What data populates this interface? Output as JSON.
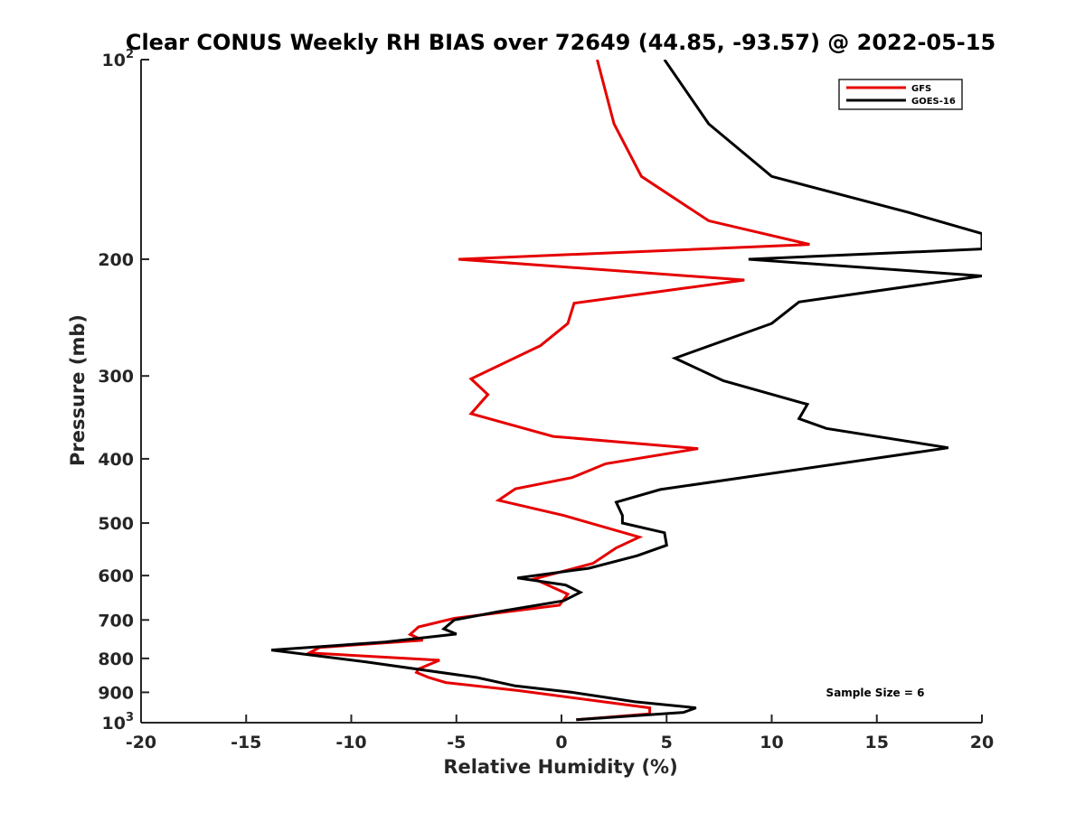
{
  "chart_data": {
    "type": "line",
    "title": "Clear CONUS Weekly RH BIAS over 72649 (44.85, -93.57) @ 2022-05-15",
    "xlabel": "Relative Humidity (%)",
    "ylabel": "Pressure (mb)",
    "xlim": [
      -20,
      20
    ],
    "ylim": [
      100,
      1000
    ],
    "y_scale": "log",
    "y_reversed": true,
    "x_ticks": [
      -20,
      -15,
      -10,
      -5,
      0,
      5,
      10,
      15,
      20
    ],
    "x_tick_labels": [
      "-20",
      "-15",
      "-10",
      "-5",
      "0",
      "5",
      "10",
      "15",
      "20"
    ],
    "y_ticks": [
      {
        "value": 100,
        "base": "10",
        "exp": "2"
      },
      {
        "value": 200,
        "base": "200",
        "exp": ""
      },
      {
        "value": 300,
        "base": "300",
        "exp": ""
      },
      {
        "value": 400,
        "base": "400",
        "exp": ""
      },
      {
        "value": 500,
        "base": "500",
        "exp": ""
      },
      {
        "value": 600,
        "base": "600",
        "exp": ""
      },
      {
        "value": 700,
        "base": "700",
        "exp": ""
      },
      {
        "value": 800,
        "base": "800",
        "exp": ""
      },
      {
        "value": 900,
        "base": "900",
        "exp": ""
      },
      {
        "value": 1000,
        "base": "10",
        "exp": "3"
      }
    ],
    "grid": false,
    "legend_position": "top-right",
    "annotation": "Sample Size = 6",
    "series": [
      {
        "name": "GFS",
        "color": "#e60000",
        "points": [
          [
            1.7,
            100
          ],
          [
            2.5,
            125
          ],
          [
            3.8,
            150
          ],
          [
            7.0,
            175
          ],
          [
            11.8,
            190
          ],
          [
            -4.9,
            200
          ],
          [
            8.7,
            215
          ],
          [
            0.6,
            233
          ],
          [
            0.3,
            250
          ],
          [
            -1.0,
            270
          ],
          [
            -4.3,
            303
          ],
          [
            -3.5,
            320
          ],
          [
            -4.3,
            342
          ],
          [
            -0.4,
            370
          ],
          [
            6.5,
            386
          ],
          [
            2.1,
            407
          ],
          [
            0.5,
            427
          ],
          [
            -2.2,
            444
          ],
          [
            -3.0,
            462
          ],
          [
            0.1,
            487
          ],
          [
            3.7,
            525
          ],
          [
            2.6,
            545
          ],
          [
            1.5,
            575
          ],
          [
            -1.3,
            607
          ],
          [
            0.3,
            640
          ],
          [
            -0.1,
            665
          ],
          [
            -5.1,
            696
          ],
          [
            -6.8,
            717
          ],
          [
            -7.2,
            736
          ],
          [
            -6.6,
            751
          ],
          [
            -11.5,
            770
          ],
          [
            -12.0,
            785
          ],
          [
            -5.8,
            805
          ],
          [
            -6.8,
            830
          ],
          [
            -6.9,
            840
          ],
          [
            -6.3,
            855
          ],
          [
            -5.5,
            870
          ],
          [
            -2.0,
            895
          ],
          [
            4.2,
            950
          ],
          [
            4.2,
            970
          ],
          [
            0.7,
            990
          ]
        ]
      },
      {
        "name": "GOES-16",
        "color": "#000000",
        "points": [
          [
            4.9,
            100
          ],
          [
            7.0,
            125
          ],
          [
            10.0,
            150
          ],
          [
            16.5,
            170
          ],
          [
            20.0,
            183
          ],
          [
            20.0,
            193
          ],
          [
            8.9,
            200
          ],
          [
            20.0,
            212
          ],
          [
            11.3,
            232
          ],
          [
            10.0,
            250
          ],
          [
            5.4,
            282
          ],
          [
            7.7,
            305
          ],
          [
            11.7,
            331
          ],
          [
            11.3,
            348
          ],
          [
            12.6,
            360
          ],
          [
            18.4,
            385
          ],
          [
            4.7,
            445
          ],
          [
            2.6,
            465
          ],
          [
            2.9,
            487
          ],
          [
            2.9,
            500
          ],
          [
            4.9,
            517
          ],
          [
            5.0,
            540
          ],
          [
            3.6,
            560
          ],
          [
            1.3,
            585
          ],
          [
            -2.1,
            605
          ],
          [
            0.2,
            620
          ],
          [
            0.9,
            636
          ],
          [
            0.1,
            655
          ],
          [
            -3.0,
            680
          ],
          [
            -5.1,
            700
          ],
          [
            -5.6,
            722
          ],
          [
            -5.0,
            735
          ],
          [
            -8.4,
            756
          ],
          [
            -13.8,
            777
          ],
          [
            -9.3,
            810
          ],
          [
            -4.0,
            855
          ],
          [
            -2.2,
            880
          ],
          [
            0.5,
            900
          ],
          [
            3.5,
            930
          ],
          [
            6.4,
            950
          ],
          [
            5.8,
            965
          ],
          [
            0.7,
            990
          ]
        ]
      }
    ]
  }
}
